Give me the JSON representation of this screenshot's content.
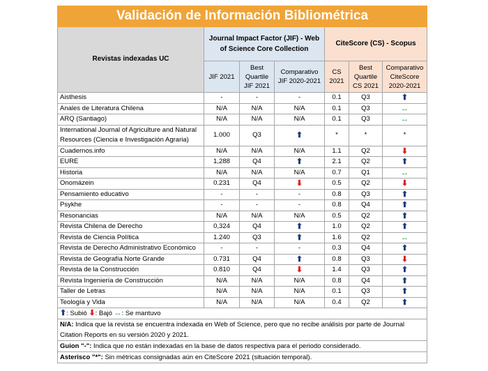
{
  "title": "Validación de Información Bibliométrica",
  "header": {
    "col0": "Revistas indexadas UC",
    "jif_group": "Journal Impact Factor (JIF) - Web of Science Core Collection",
    "cs_group": "CiteScore (CS) - Scopus",
    "sub": [
      "JIF 2021",
      "Best Quartile JIF 2021",
      "Comparativo JIF 2020-2021",
      "CS 2021",
      "Best Quartile CS 2021",
      "Comparativo CiteScore 2020-2021"
    ]
  },
  "legend": [
    {
      "symbol": "⬆",
      "label": ": Subió",
      "color": "#1f3d7a"
    },
    {
      "symbol": "⬇",
      "label": ": Bajó",
      "color": "#e0201b"
    },
    {
      "symbol": "↔",
      "label": ": Se mantuvo",
      "color": "#2aa84a"
    }
  ],
  "table": {
    "rows": [
      [
        "Aisthesis",
        "-",
        "-",
        "-",
        "0.1",
        "Q3",
        "⬆"
      ],
      [
        "Anales de Literatura Chilena",
        "N/A",
        "N/A",
        "N/A",
        "0.1",
        "Q3",
        "↔"
      ],
      [
        "ARQ (Santiago)",
        "N/A",
        "N/A",
        "N/A",
        "0.1",
        "Q3",
        "↔"
      ],
      [
        "International Journal of Agriculture and Natural Resources (Ciencia e Investigación Agraria)",
        "1.000",
        "Q3",
        "⬆",
        "*",
        "*",
        "*"
      ],
      [
        "Cuadernos.info",
        "N/A",
        "N/A",
        "N/A",
        "1.1",
        "Q2",
        "⬇"
      ],
      [
        "EURE",
        "1,288",
        "Q4",
        "⬆",
        "2.1",
        "Q2",
        "⬆"
      ],
      [
        "Historia",
        "N/A",
        "N/A",
        "N/A",
        "0.7",
        "Q1",
        "↔"
      ],
      [
        "Onomázein",
        "0.231",
        "Q4",
        "⬇",
        "0.5",
        "Q2",
        "⬇"
      ],
      [
        "Pensamiento educativo",
        "-",
        "-",
        "-",
        "0.8",
        "Q3",
        "⬆"
      ],
      [
        "Psykhe",
        "-",
        "-",
        "-",
        "0.8",
        "Q4",
        "⬆"
      ],
      [
        "Resonancias",
        "N/A",
        "N/A",
        "N/A",
        "0.5",
        "Q2",
        "⬆"
      ],
      [
        "Revista Chilena de Derecho",
        "0,324",
        "Q4",
        "⬆",
        "1.0",
        "Q2",
        "⬆"
      ],
      [
        "Revista de Ciencia Política",
        "1.240",
        "Q3",
        "⬆",
        "1.6",
        "Q2",
        "↔"
      ],
      [
        "Revista de Derecho Administrativo Económico",
        "-",
        "-",
        "-",
        "0.3",
        "Q4",
        "⬆"
      ],
      [
        "Revista de Geografía Norte Grande",
        "0.731",
        "Q4",
        "⬆",
        "0.8",
        "Q3",
        "⬇"
      ],
      [
        "Revista de la Construcción",
        "0.810",
        "Q4",
        "⬇",
        "1.4",
        "Q3",
        "⬆"
      ],
      [
        "Revista Ingeniería de Construcción",
        "N/A",
        "N/A",
        "N/A",
        "0.8",
        "Q4",
        "⬆"
      ],
      [
        "Taller de Letras",
        "N/A",
        "N/A",
        "N/A",
        "0.1",
        "Q3",
        "⬆"
      ],
      [
        "Teología y Vida",
        "N/A",
        "N/A",
        "N/A",
        "0.4",
        "Q2",
        "⬆"
      ]
    ]
  },
  "notes": [
    {
      "term": "N/A:",
      "text": " Indica que la revista se encuentra indexada en Web of Science, pero que no recibe análisis por parte de Journal Citation Reports en su versión 2020 y 2021."
    },
    {
      "term": "Guion \"-\":",
      "text": " Indica que no están indexadas en la base de datos respectiva para el periodo considerado."
    },
    {
      "term": "Asterisco \"*\":",
      "text": " Sin métricas consignadas aún en CiteScore 2021  (situación temporal)."
    }
  ]
}
